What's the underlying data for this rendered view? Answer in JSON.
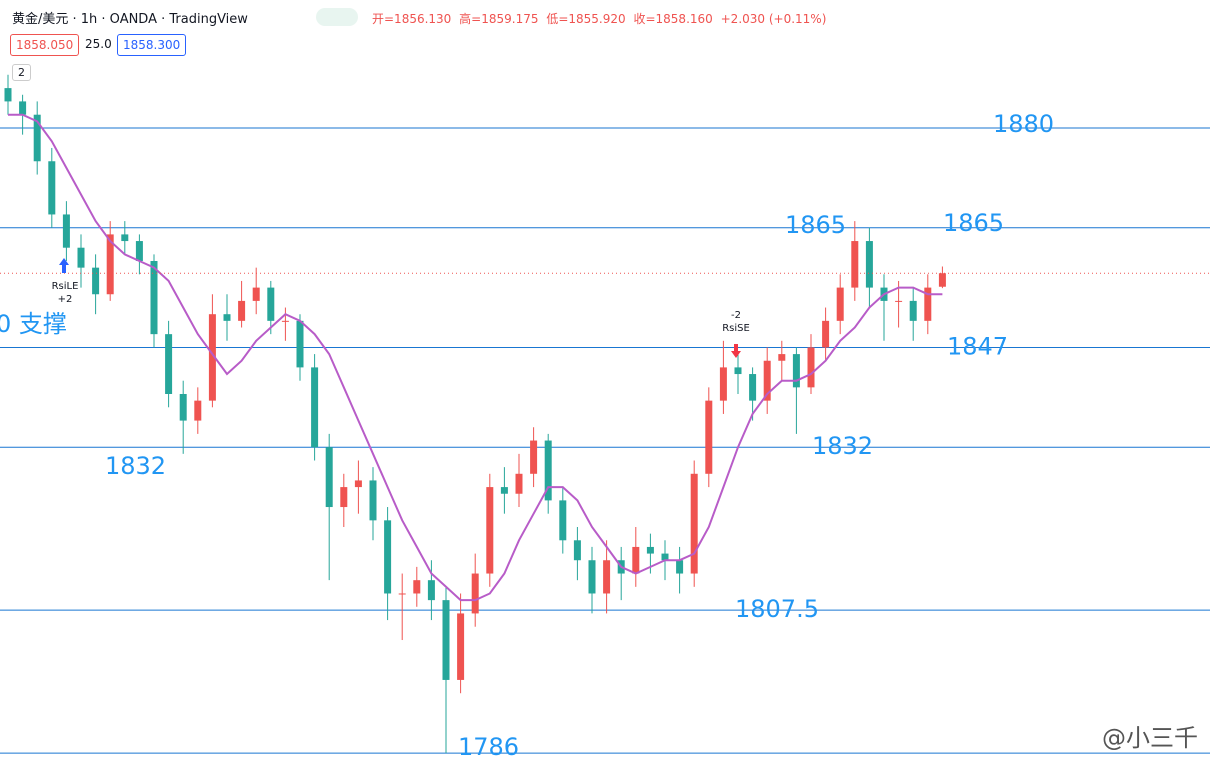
{
  "header": {
    "title": "黄金/美元 · 1h · OANDA · TradingView",
    "ohlc": [
      "开=1856.130",
      "高=1859.175",
      "低=1855.920",
      "收=1858.160",
      "+2.030 (+0.11%)"
    ],
    "sell": "1858.050",
    "spread": "25.0",
    "buy": "1858.300",
    "toggle": "2"
  },
  "watermark": "@小三千",
  "chart_data": {
    "type": "candlestick",
    "ylim": [
      1781.5,
      1899.25
    ],
    "up_color": "#ef5350",
    "down_color": "#26a69a",
    "ma_color": "#b85cc8",
    "level_color": "#1976d2",
    "open": [
      1886,
      1884,
      1882,
      1875,
      1867,
      1862,
      1859,
      1855,
      1864,
      1863,
      1860,
      1849,
      1840,
      1836,
      1839,
      1852,
      1851,
      1854,
      1856,
      1851,
      1851,
      1844,
      1832,
      1823,
      1826,
      1827,
      1821,
      1810,
      1810,
      1812,
      1809,
      1797,
      1807,
      1813,
      1826,
      1825,
      1828,
      1833,
      1824,
      1818,
      1815,
      1810,
      1815,
      1813,
      1817,
      1816,
      1815,
      1813,
      1828,
      1839,
      1844,
      1843,
      1839,
      1845,
      1846,
      1841,
      1847,
      1851,
      1856,
      1863,
      1856,
      1854,
      1854,
      1851,
      1856.13
    ],
    "high": [
      1888,
      1885,
      1884,
      1877,
      1869,
      1864,
      1861,
      1866,
      1866,
      1864,
      1861,
      1851,
      1842,
      1841,
      1855,
      1855,
      1857,
      1859,
      1857,
      1853,
      1852,
      1846,
      1834,
      1828,
      1830,
      1829,
      1823,
      1813,
      1814,
      1815,
      1811,
      1810,
      1816,
      1828,
      1829,
      1831,
      1835,
      1834,
      1826,
      1820,
      1817,
      1818,
      1817,
      1820,
      1819,
      1818,
      1817,
      1830,
      1841,
      1848,
      1846,
      1844,
      1847,
      1848,
      1847,
      1849,
      1853,
      1858,
      1866,
      1865,
      1858,
      1857,
      1856,
      1858,
      1859.175
    ],
    "low": [
      1882,
      1879,
      1873,
      1865,
      1860,
      1856,
      1852,
      1854,
      1861,
      1858,
      1847,
      1838,
      1831,
      1834,
      1838,
      1848,
      1850,
      1852,
      1849,
      1848,
      1842,
      1830,
      1812,
      1820,
      1822,
      1818,
      1806,
      1803,
      1808,
      1806,
      1786,
      1795,
      1805,
      1811,
      1822,
      1823,
      1826,
      1822,
      1816,
      1812,
      1807,
      1807,
      1809,
      1811,
      1813,
      1812,
      1810,
      1811,
      1826,
      1837,
      1840,
      1836,
      1837,
      1842,
      1834,
      1840,
      1845,
      1849,
      1854,
      1853,
      1848,
      1850,
      1848,
      1849,
      1855.92
    ],
    "close": [
      1884,
      1882,
      1875,
      1867,
      1862,
      1859,
      1855,
      1864,
      1863,
      1860,
      1849,
      1840,
      1836,
      1839,
      1852,
      1851,
      1854,
      1856,
      1851,
      1851,
      1844,
      1832,
      1823,
      1826,
      1827,
      1821,
      1810,
      1810,
      1812,
      1809,
      1797,
      1807,
      1813,
      1826,
      1825,
      1828,
      1833,
      1824,
      1818,
      1815,
      1810,
      1815,
      1813,
      1817,
      1816,
      1815,
      1813,
      1828,
      1839,
      1844,
      1843,
      1839,
      1845,
      1846,
      1841,
      1847,
      1851,
      1856,
      1863,
      1856,
      1854,
      1854,
      1851,
      1856,
      1858.16
    ],
    "ma": [
      1882,
      1882,
      1881,
      1878,
      1874,
      1870,
      1866,
      1863,
      1861,
      1860,
      1859,
      1857,
      1853,
      1849,
      1846,
      1843,
      1845,
      1848,
      1850,
      1852,
      1851,
      1849,
      1846,
      1841,
      1836,
      1831,
      1826,
      1821,
      1817,
      1813,
      1811,
      1809,
      1809,
      1810,
      1813,
      1818,
      1822,
      1826,
      1826,
      1824,
      1820,
      1817,
      1814,
      1813,
      1814,
      1815,
      1815,
      1816,
      1820,
      1826,
      1832,
      1837,
      1840,
      1842,
      1842,
      1843,
      1845,
      1848,
      1850,
      1853,
      1855,
      1856,
      1856,
      1855,
      1855
    ],
    "levels": [
      1880,
      1865,
      1847,
      1832,
      1807.5,
      1786
    ],
    "support_label": "0 支撑",
    "signals": [
      {
        "label": "RsiLE",
        "qty": "+2"
      },
      {
        "label": "RsiSE",
        "qty": "-2"
      }
    ]
  }
}
